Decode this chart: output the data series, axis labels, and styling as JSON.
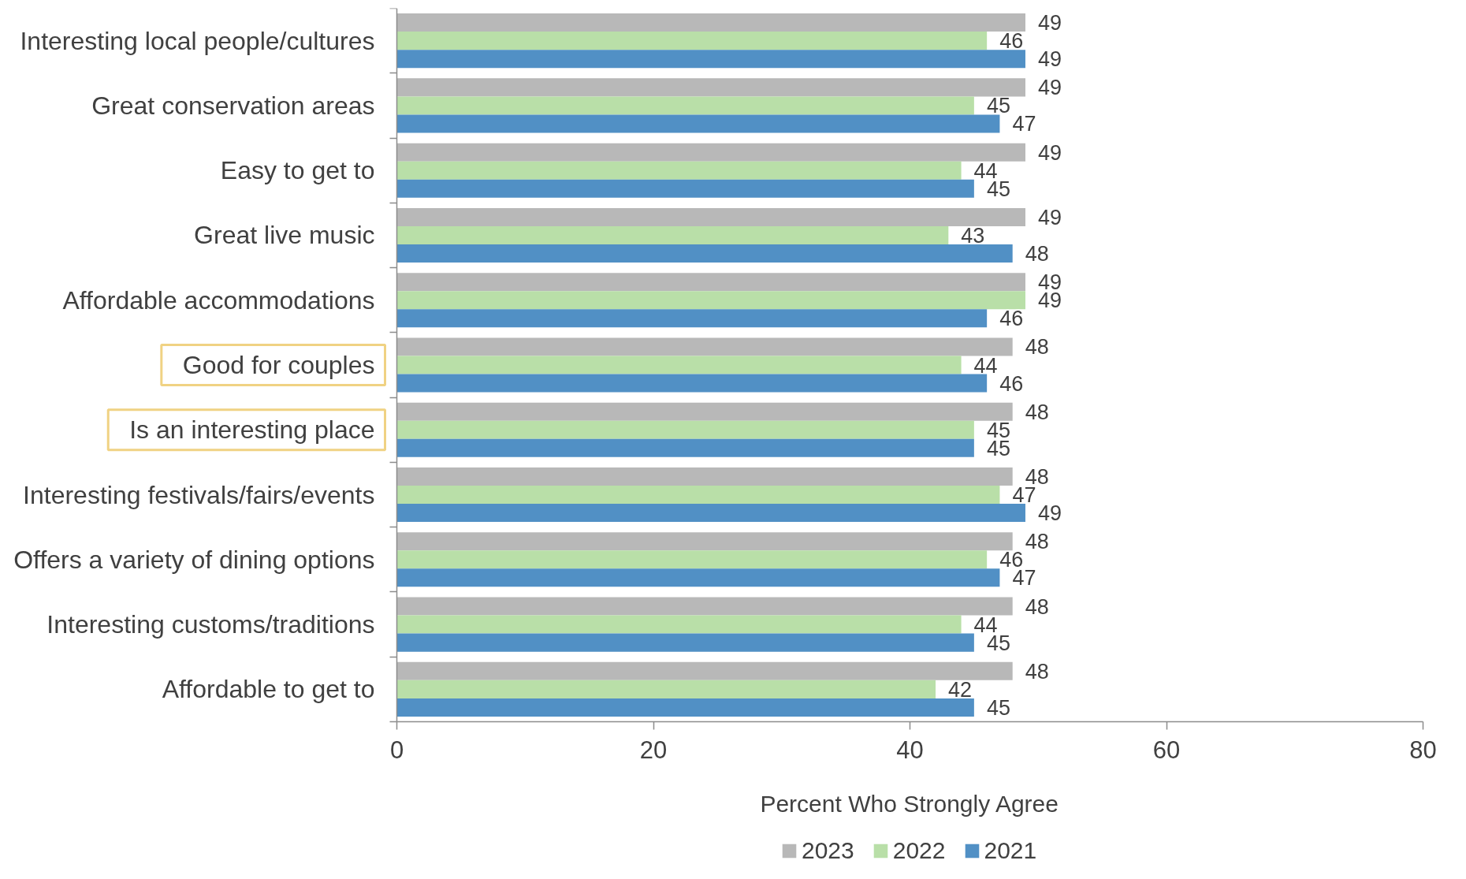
{
  "chart_data": {
    "type": "bar",
    "orientation": "horizontal",
    "categories": [
      "Interesting local people/cultures",
      "Great conservation areas",
      "Easy to get to",
      "Great live music",
      "Affordable accommodations",
      "Good for couples",
      "Is an interesting place",
      "Interesting festivals/fairs/events",
      "Offers a variety of dining options",
      "Interesting customs/traditions",
      "Affordable to get to"
    ],
    "series": [
      {
        "name": "2023",
        "color": "#b8b8b8",
        "values": [
          49,
          49,
          49,
          49,
          49,
          48,
          48,
          48,
          48,
          48,
          48
        ]
      },
      {
        "name": "2022",
        "color": "#b9dfa8",
        "values": [
          46,
          45,
          44,
          43,
          49,
          44,
          45,
          47,
          46,
          44,
          42
        ]
      },
      {
        "name": "2021",
        "color": "#5190c5",
        "values": [
          49,
          47,
          45,
          48,
          46,
          46,
          45,
          49,
          47,
          45,
          45
        ]
      }
    ],
    "xlim": [
      0,
      80
    ],
    "xticks": [
      0,
      20,
      40,
      60,
      80
    ],
    "xlabel": "Percent Who Strongly Agree",
    "data_labels": true,
    "legend": "bottom",
    "grid": false
  }
}
